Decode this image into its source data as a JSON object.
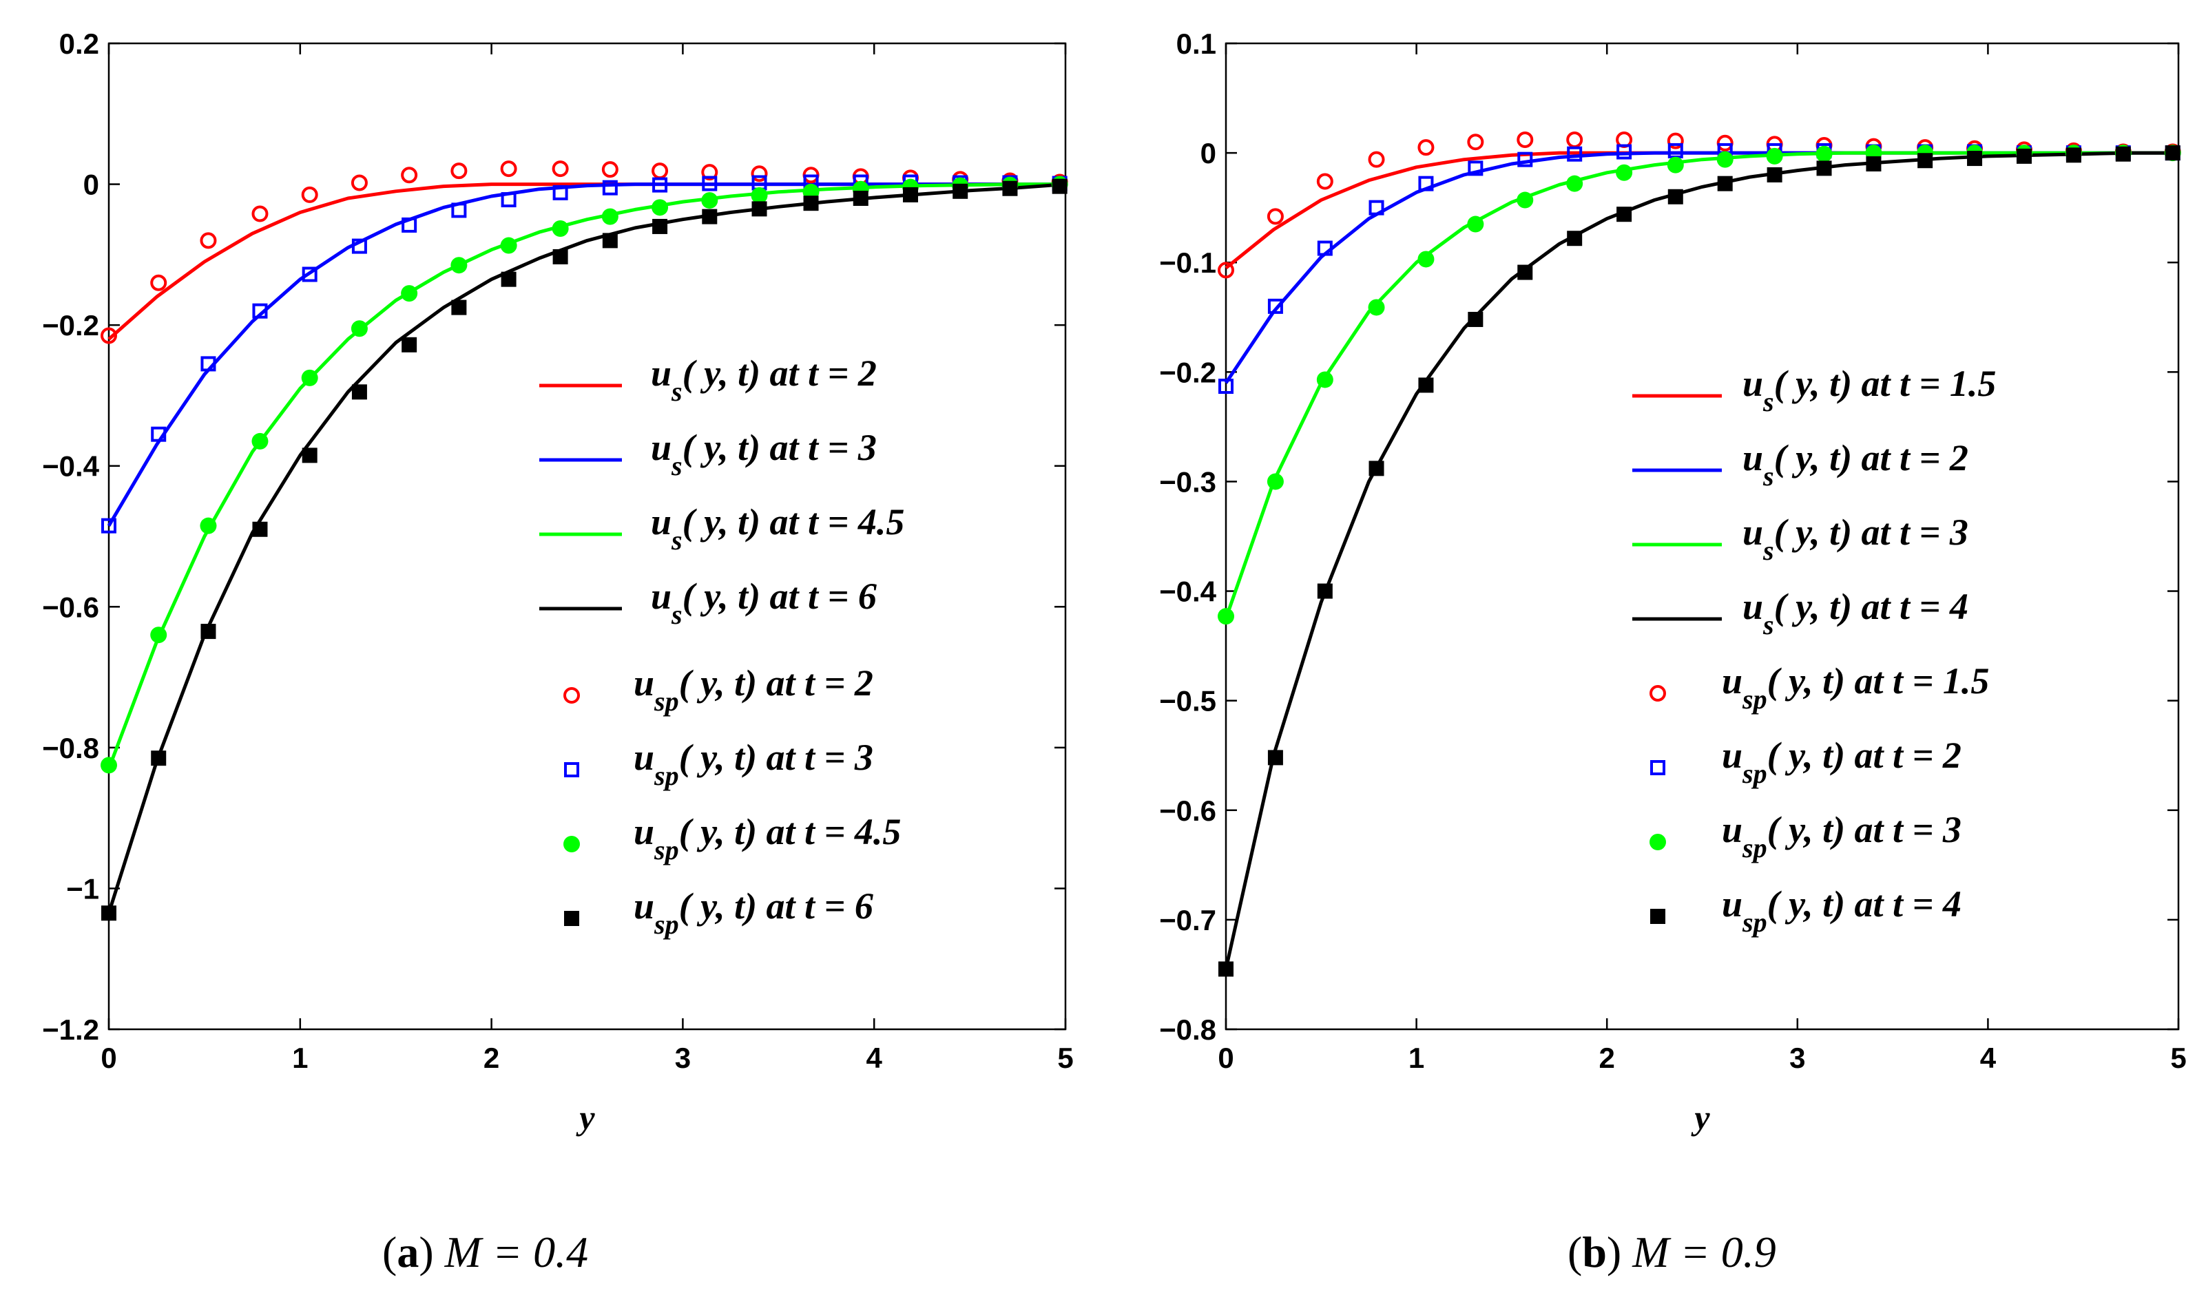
{
  "chart_data": [
    {
      "type": "line",
      "panel": "a",
      "caption_label": "a",
      "caption_text": "M = 0.4",
      "xlabel": "y",
      "ylabel": "",
      "xlim": [
        0,
        5
      ],
      "ylim": [
        -1.2,
        0.2
      ],
      "xticks": [
        0,
        1,
        2,
        3,
        4,
        5
      ],
      "xtick_labels": [
        "0",
        "1",
        "2",
        "3",
        "4",
        "5"
      ],
      "yticks": [
        0.2,
        0,
        -0.2,
        -0.4,
        -0.6,
        -0.8,
        -1,
        -1.2
      ],
      "ytick_labels": [
        "0.2",
        "0",
        "−0.2",
        "−0.4",
        "−0.6",
        "−0.8",
        "−1",
        "−1.2"
      ],
      "legend_position": "center-right",
      "series": [
        {
          "name": "u_s(y, t) at t = 2",
          "legend_main": "u",
          "legend_sub": "s",
          "legend_rest": "( y, t)  at  t = 2",
          "kind": "line",
          "color": "#ff0000",
          "x": [
            0,
            0.25,
            0.5,
            0.75,
            1,
            1.25,
            1.5,
            1.75,
            2,
            2.25,
            2.5,
            3,
            3.5,
            4,
            4.5,
            5
          ],
          "y": [
            -0.22,
            -0.16,
            -0.11,
            -0.07,
            -0.04,
            -0.02,
            -0.01,
            -0.003,
            0,
            0,
            0,
            0,
            0,
            0,
            0,
            0
          ]
        },
        {
          "name": "u_s(y, t) at t = 3",
          "legend_main": "u",
          "legend_sub": "s",
          "legend_rest": "( y, t)  at  t = 3",
          "kind": "line",
          "color": "#0000ff",
          "x": [
            0,
            0.25,
            0.5,
            0.75,
            1,
            1.25,
            1.5,
            1.75,
            2,
            2.25,
            2.5,
            2.75,
            3,
            3.5,
            4,
            4.5,
            5
          ],
          "y": [
            -0.485,
            -0.37,
            -0.27,
            -0.195,
            -0.135,
            -0.09,
            -0.057,
            -0.033,
            -0.017,
            -0.007,
            -0.002,
            0,
            0,
            0,
            0,
            0,
            0
          ]
        },
        {
          "name": "u_s(y, t) at t = 4.5",
          "legend_main": "u",
          "legend_sub": "s",
          "legend_rest": "( y, t)  at  t = 4.5",
          "kind": "line",
          "color": "#00ff00",
          "x": [
            0,
            0.25,
            0.5,
            0.75,
            1,
            1.25,
            1.5,
            1.75,
            2,
            2.25,
            2.5,
            2.75,
            3,
            3.25,
            3.5,
            3.75,
            4,
            4.25,
            4.5,
            4.75,
            5
          ],
          "y": [
            -0.83,
            -0.65,
            -0.5,
            -0.38,
            -0.29,
            -0.22,
            -0.165,
            -0.125,
            -0.093,
            -0.068,
            -0.05,
            -0.036,
            -0.025,
            -0.017,
            -0.011,
            -0.007,
            -0.004,
            -0.002,
            -0.001,
            0,
            0
          ]
        },
        {
          "name": "u_s(y, t) at t = 6",
          "legend_main": "u",
          "legend_sub": "s",
          "legend_rest": "( y, t)  at  t = 6",
          "kind": "line",
          "color": "#000000",
          "x": [
            0,
            0.25,
            0.5,
            0.75,
            1,
            1.25,
            1.5,
            1.75,
            2,
            2.25,
            2.5,
            2.75,
            3,
            3.25,
            3.5,
            3.75,
            4,
            4.25,
            4.5,
            4.75,
            5
          ],
          "y": [
            -1.035,
            -0.82,
            -0.64,
            -0.495,
            -0.385,
            -0.295,
            -0.225,
            -0.175,
            -0.135,
            -0.105,
            -0.08,
            -0.062,
            -0.05,
            -0.04,
            -0.032,
            -0.025,
            -0.019,
            -0.014,
            -0.009,
            -0.005,
            0
          ]
        },
        {
          "name": "u_sp(y, t) at t = 2",
          "legend_main": "u",
          "legend_sub": "sp",
          "legend_rest": "( y, t)  at  t = 2",
          "kind": "marker",
          "marker": "circle-open",
          "color": "#ff0000",
          "x": [
            0,
            0.26,
            0.52,
            0.79,
            1.05,
            1.31,
            1.57,
            1.83,
            2.09,
            2.36,
            2.62,
            2.88,
            3.14,
            3.4,
            3.67,
            3.93,
            4.19,
            4.45,
            4.71,
            4.97
          ],
          "y": [
            -0.215,
            -0.14,
            -0.08,
            -0.042,
            -0.015,
            0.002,
            0.013,
            0.019,
            0.022,
            0.022,
            0.021,
            0.019,
            0.017,
            0.015,
            0.013,
            0.011,
            0.009,
            0.007,
            0.005,
            0.003
          ]
        },
        {
          "name": "u_sp(y, t) at t = 3",
          "legend_main": "u",
          "legend_sub": "sp",
          "legend_rest": "( y, t)  at  t = 3",
          "kind": "marker",
          "marker": "square-open",
          "color": "#0000ff",
          "x": [
            0,
            0.26,
            0.52,
            0.79,
            1.05,
            1.31,
            1.57,
            1.83,
            2.09,
            2.36,
            2.62,
            2.88,
            3.14,
            3.4,
            3.67,
            3.93,
            4.19,
            4.45,
            4.71,
            4.97
          ],
          "y": [
            -0.485,
            -0.355,
            -0.255,
            -0.18,
            -0.128,
            -0.088,
            -0.058,
            -0.037,
            -0.022,
            -0.012,
            -0.005,
            -0.001,
            0.001,
            0.002,
            0.003,
            0.003,
            0.003,
            0.002,
            0.002,
            0.001
          ]
        },
        {
          "name": "u_sp(y, t) at t = 4.5",
          "legend_main": "u",
          "legend_sub": "sp",
          "legend_rest": "( y, t)  at  t = 4.5",
          "kind": "marker",
          "marker": "circle-filled",
          "color": "#00ff00",
          "x": [
            0,
            0.26,
            0.52,
            0.79,
            1.05,
            1.31,
            1.57,
            1.83,
            2.09,
            2.36,
            2.62,
            2.88,
            3.14,
            3.4,
            3.67,
            3.93,
            4.19,
            4.45,
            4.71,
            4.97
          ],
          "y": [
            -0.825,
            -0.64,
            -0.485,
            -0.365,
            -0.275,
            -0.205,
            -0.155,
            -0.115,
            -0.087,
            -0.063,
            -0.046,
            -0.033,
            -0.023,
            -0.016,
            -0.011,
            -0.007,
            -0.004,
            -0.002,
            -0.001,
            0
          ]
        },
        {
          "name": "u_sp(y, t) at t = 6",
          "legend_main": "u",
          "legend_sub": "sp",
          "legend_rest": "( y, t)  at  t = 6",
          "kind": "marker",
          "marker": "square-filled",
          "color": "#000000",
          "x": [
            0,
            0.26,
            0.52,
            0.79,
            1.05,
            1.31,
            1.57,
            1.83,
            2.09,
            2.36,
            2.62,
            2.88,
            3.14,
            3.4,
            3.67,
            3.93,
            4.19,
            4.45,
            4.71,
            4.97
          ],
          "y": [
            -1.035,
            -0.815,
            -0.635,
            -0.49,
            -0.385,
            -0.295,
            -0.228,
            -0.175,
            -0.135,
            -0.103,
            -0.08,
            -0.06,
            -0.046,
            -0.035,
            -0.027,
            -0.02,
            -0.015,
            -0.01,
            -0.006,
            -0.003
          ]
        }
      ]
    },
    {
      "type": "line",
      "panel": "b",
      "caption_label": "b",
      "caption_text": "M = 0.9",
      "xlabel": "y",
      "ylabel": "",
      "xlim": [
        0,
        5
      ],
      "ylim": [
        -0.8,
        0.1
      ],
      "xticks": [
        0,
        1,
        2,
        3,
        4,
        5
      ],
      "xtick_labels": [
        "0",
        "1",
        "2",
        "3",
        "4",
        "5"
      ],
      "yticks": [
        0.1,
        0,
        -0.1,
        -0.2,
        -0.3,
        -0.4,
        -0.5,
        -0.6,
        -0.7,
        -0.8
      ],
      "ytick_labels": [
        "0.1",
        "0",
        "−0.1",
        "−0.2",
        "−0.3",
        "−0.4",
        "−0.5",
        "−0.6",
        "−0.7",
        "−0.8"
      ],
      "legend_position": "center-right",
      "series": [
        {
          "name": "u_s(y, t) at t = 1.5",
          "legend_main": "u",
          "legend_sub": "s",
          "legend_rest": "( y, t)  at  t = 1.5",
          "kind": "line",
          "color": "#ff0000",
          "x": [
            0,
            0.25,
            0.5,
            0.75,
            1,
            1.25,
            1.5,
            1.75,
            2,
            2.5,
            3,
            3.5,
            4,
            4.5,
            5
          ],
          "y": [
            -0.105,
            -0.07,
            -0.043,
            -0.025,
            -0.013,
            -0.006,
            -0.002,
            0,
            0,
            0,
            0,
            0,
            0,
            0,
            0
          ]
        },
        {
          "name": "u_s(y, t) at t = 2",
          "legend_main": "u",
          "legend_sub": "s",
          "legend_rest": "( y, t)  at  t = 2",
          "kind": "line",
          "color": "#0000ff",
          "x": [
            0,
            0.25,
            0.5,
            0.75,
            1,
            1.25,
            1.5,
            1.75,
            2,
            2.25,
            2.5,
            2.75,
            3,
            3.5,
            4,
            4.5,
            5
          ],
          "y": [
            -0.21,
            -0.145,
            -0.095,
            -0.06,
            -0.036,
            -0.02,
            -0.01,
            -0.004,
            -0.001,
            0,
            0,
            0,
            0,
            0,
            0,
            0,
            0
          ]
        },
        {
          "name": "u_s(y, t) at t = 3",
          "legend_main": "u",
          "legend_sub": "s",
          "legend_rest": "( y, t)  at  t = 3",
          "kind": "line",
          "color": "#00ff00",
          "x": [
            0,
            0.25,
            0.5,
            0.75,
            1,
            1.25,
            1.5,
            1.75,
            2,
            2.25,
            2.5,
            2.75,
            3,
            3.25,
            3.5,
            4,
            4.5,
            5
          ],
          "y": [
            -0.425,
            -0.3,
            -0.21,
            -0.145,
            -0.1,
            -0.068,
            -0.045,
            -0.029,
            -0.018,
            -0.011,
            -0.006,
            -0.003,
            -0.001,
            0,
            0,
            0,
            0,
            0
          ]
        },
        {
          "name": "u_s(y, t) at t = 4",
          "legend_main": "u",
          "legend_sub": "s",
          "legend_rest": "( y, t)  at  t = 4",
          "kind": "line",
          "color": "#000000",
          "x": [
            0,
            0.25,
            0.5,
            0.75,
            1,
            1.25,
            1.5,
            1.75,
            2,
            2.25,
            2.5,
            2.75,
            3,
            3.25,
            3.5,
            3.75,
            4,
            4.25,
            4.5,
            4.75,
            5
          ],
          "y": [
            -0.745,
            -0.55,
            -0.41,
            -0.3,
            -0.22,
            -0.16,
            -0.115,
            -0.083,
            -0.06,
            -0.043,
            -0.031,
            -0.022,
            -0.016,
            -0.011,
            -0.008,
            -0.005,
            -0.003,
            -0.002,
            -0.001,
            0,
            0
          ]
        },
        {
          "name": "u_sp(y, t) at t = 1.5",
          "legend_main": "u",
          "legend_sub": "sp",
          "legend_rest": "( y, t)  at  t = 1.5",
          "kind": "marker",
          "marker": "circle-open",
          "color": "#ff0000",
          "x": [
            0,
            0.26,
            0.52,
            0.79,
            1.05,
            1.31,
            1.57,
            1.83,
            2.09,
            2.36,
            2.62,
            2.88,
            3.14,
            3.4,
            3.67,
            3.93,
            4.19,
            4.45,
            4.71,
            4.97
          ],
          "y": [
            -0.107,
            -0.058,
            -0.026,
            -0.006,
            0.005,
            0.01,
            0.012,
            0.012,
            0.012,
            0.011,
            0.009,
            0.008,
            0.007,
            0.006,
            0.005,
            0.004,
            0.003,
            0.002,
            0.001,
            0.001
          ]
        },
        {
          "name": "u_sp(y, t) at t = 2",
          "legend_main": "u",
          "legend_sub": "sp",
          "legend_rest": "( y, t)  at  t = 2",
          "kind": "marker",
          "marker": "square-open",
          "color": "#0000ff",
          "x": [
            0,
            0.26,
            0.52,
            0.79,
            1.05,
            1.31,
            1.57,
            1.83,
            2.09,
            2.36,
            2.62,
            2.88,
            3.14,
            3.4,
            3.67,
            3.93,
            4.19,
            4.45,
            4.71,
            4.97
          ],
          "y": [
            -0.213,
            -0.14,
            -0.087,
            -0.05,
            -0.028,
            -0.014,
            -0.006,
            -0.001,
            0.001,
            0.002,
            0.002,
            0.002,
            0.002,
            0.001,
            0.001,
            0.001,
            0,
            0,
            0,
            0
          ]
        },
        {
          "name": "u_sp(y, t) at t = 3",
          "legend_main": "u",
          "legend_sub": "sp",
          "legend_rest": "( y, t)  at  t = 3",
          "kind": "marker",
          "marker": "circle-filled",
          "color": "#00ff00",
          "x": [
            0,
            0.26,
            0.52,
            0.79,
            1.05,
            1.31,
            1.57,
            1.83,
            2.09,
            2.36,
            2.62,
            2.88,
            3.14,
            3.4,
            3.67,
            3.93,
            4.19,
            4.45,
            4.71,
            4.97
          ],
          "y": [
            -0.423,
            -0.3,
            -0.207,
            -0.141,
            -0.097,
            -0.065,
            -0.043,
            -0.028,
            -0.018,
            -0.011,
            -0.006,
            -0.003,
            -0.001,
            0,
            0,
            0,
            0,
            0,
            0,
            0
          ]
        },
        {
          "name": "u_sp(y, t) at t = 4",
          "legend_main": "u",
          "legend_sub": "sp",
          "legend_rest": "( y, t)  at  t = 4",
          "kind": "marker",
          "marker": "square-filled",
          "color": "#000000",
          "x": [
            0,
            0.26,
            0.52,
            0.79,
            1.05,
            1.31,
            1.57,
            1.83,
            2.09,
            2.36,
            2.62,
            2.88,
            3.14,
            3.4,
            3.67,
            3.93,
            4.19,
            4.45,
            4.71,
            4.97
          ],
          "y": [
            -0.745,
            -0.552,
            -0.4,
            -0.288,
            -0.212,
            -0.152,
            -0.109,
            -0.078,
            -0.056,
            -0.04,
            -0.028,
            -0.02,
            -0.014,
            -0.01,
            -0.007,
            -0.005,
            -0.003,
            -0.002,
            -0.001,
            0
          ]
        }
      ]
    }
  ]
}
